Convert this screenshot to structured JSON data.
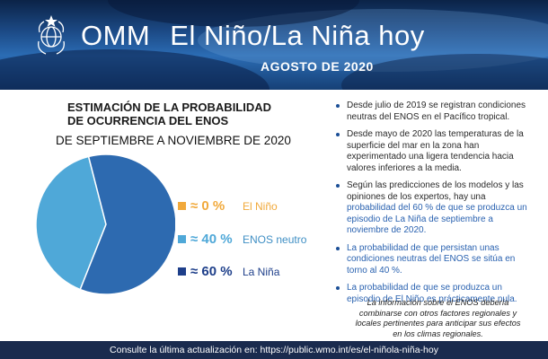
{
  "colors": {
    "banner": "#1c4a86",
    "orange": "#f1a93b",
    "light_blue": "#4fa8d8",
    "mid_blue": "#2d6ab0",
    "dark_blue": "#1e3f8a",
    "footer": "#1a2b4e",
    "highlight": "#2a62b0"
  },
  "header": {
    "org": "OMM",
    "title": "El Niño/La Niña hoy",
    "date": "AGOSTO DE 2020",
    "logo_icon": "wmo-emblem-icon"
  },
  "chart_title": [
    "ESTIMACIÓN DE LA PROBABILIDAD",
    "DE OCURRENCIA DEL ENOS"
  ],
  "chart_subtitle": "DE SEPTIEMBRE A NOVIEMBRE DE 2020",
  "chart_data": {
    "type": "pie",
    "slices": [
      {
        "label": "El Niño",
        "value": 0,
        "display": "≈ 0 %",
        "color": "#f1a93b"
      },
      {
        "label": "ENOS neutro",
        "value": 40,
        "display": "≈ 40 %",
        "color": "#4fa8d8"
      },
      {
        "label": "La Niña",
        "value": 60,
        "display": "≈ 60 %",
        "color": "#2d6ab0"
      }
    ]
  },
  "bullets": [
    {
      "text": "Desde julio de 2019 se registran condiciones neutras del ENOS en el Pacífico tropical.",
      "highlight": ""
    },
    {
      "text": "Desde mayo de 2020 las temperaturas de la superficie del mar en la zona han experimentado una ligera tendencia hacia valores inferiores a la media.",
      "highlight": ""
    },
    {
      "text": "Según las predicciones de los modelos y las opiniones de los expertos, hay una ",
      "highlight": "probabilidad del 60 % de que se produzca un episodio de La Niña de septiembre a noviembre de 2020."
    },
    {
      "text": "",
      "highlight": "La probabilidad de que persistan unas condiciones neutras del ENOS se sitúa en torno al 40 %."
    },
    {
      "text": "",
      "highlight": "La probabilidad de que se produzca un episodio de El Niño es prácticamente nula."
    }
  ],
  "note": "La información sobre el ENOS debería combinarse con otros factores regionales y locales pertinentes para anticipar sus efectos en los climas regionales.",
  "footer": "Consulte la última actualización en:  https://public.wmo.int/es/el-niñola-niña-hoy"
}
